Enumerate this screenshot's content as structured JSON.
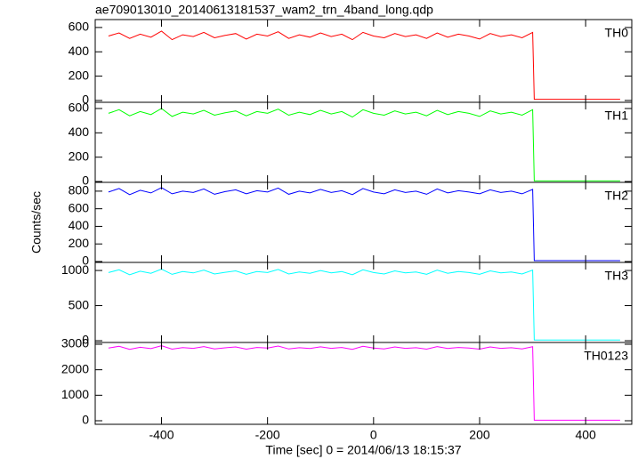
{
  "chart_data": [
    {
      "type": "line",
      "title": "ae709013010_20140613181537_wam2_trn_4band_long.qdp",
      "label": "TH0",
      "x": [
        -500,
        -480,
        -460,
        -440,
        -420,
        -400,
        -380,
        -360,
        -340,
        -320,
        -300,
        -280,
        -260,
        -240,
        -220,
        -200,
        -180,
        -160,
        -140,
        -120,
        -100,
        -80,
        -60,
        -40,
        -20,
        0,
        20,
        40,
        60,
        80,
        100,
        120,
        140,
        160,
        180,
        200,
        220,
        240,
        260,
        280,
        300,
        303,
        465
      ],
      "series": [
        {
          "color": "#ff0000",
          "values": [
            530,
            555,
            510,
            545,
            520,
            570,
            500,
            540,
            525,
            560,
            515,
            535,
            550,
            505,
            545,
            530,
            565,
            510,
            540,
            520,
            555,
            525,
            545,
            500,
            560,
            530,
            515,
            550,
            525,
            540,
            510,
            555,
            520,
            545,
            530,
            505,
            550,
            525,
            540,
            515,
            560,
            10,
            10
          ]
        }
      ],
      "xlim": [
        -525,
        487
      ],
      "xticks": [
        -400,
        -200,
        0,
        200,
        400
      ],
      "ylim": [
        -15,
        665
      ],
      "yticks": [
        0,
        200,
        400,
        600
      ]
    },
    {
      "type": "line",
      "label": "TH1",
      "x": [
        -500,
        -480,
        -460,
        -440,
        -420,
        -400,
        -380,
        -360,
        -340,
        -320,
        -300,
        -280,
        -260,
        -240,
        -220,
        -200,
        -180,
        -160,
        -140,
        -120,
        -100,
        -80,
        -60,
        -40,
        -20,
        0,
        20,
        40,
        60,
        80,
        100,
        120,
        140,
        160,
        180,
        200,
        220,
        240,
        260,
        280,
        300,
        303,
        465
      ],
      "series": [
        {
          "color": "#00ff00",
          "values": [
            560,
            590,
            540,
            575,
            550,
            600,
            535,
            570,
            555,
            585,
            545,
            565,
            580,
            540,
            575,
            560,
            595,
            545,
            570,
            550,
            585,
            555,
            575,
            530,
            590,
            560,
            545,
            580,
            555,
            570,
            540,
            585,
            550,
            575,
            560,
            535,
            580,
            555,
            570,
            545,
            590,
            5,
            5
          ]
        }
      ],
      "xlim": [
        -525,
        487
      ],
      "xticks": [
        -400,
        -200,
        0,
        200,
        400
      ],
      "ylim": [
        -7,
        651
      ],
      "yticks": [
        0,
        200,
        400,
        600
      ]
    },
    {
      "type": "line",
      "label": "TH2",
      "ylabel": "Counts/sec",
      "x": [
        -500,
        -480,
        -460,
        -440,
        -420,
        -400,
        -380,
        -360,
        -340,
        -320,
        -300,
        -280,
        -260,
        -240,
        -220,
        -200,
        -180,
        -160,
        -140,
        -120,
        -100,
        -80,
        -60,
        -40,
        -20,
        0,
        20,
        40,
        60,
        80,
        100,
        120,
        140,
        160,
        180,
        200,
        220,
        240,
        260,
        280,
        300,
        303,
        465
      ],
      "series": [
        {
          "color": "#0000ff",
          "values": [
            790,
            830,
            760,
            810,
            780,
            840,
            770,
            800,
            785,
            825,
            765,
            795,
            815,
            770,
            805,
            790,
            835,
            765,
            800,
            780,
            820,
            785,
            805,
            760,
            830,
            790,
            770,
            815,
            785,
            800,
            765,
            825,
            780,
            805,
            790,
            770,
            815,
            785,
            800,
            770,
            820,
            10,
            10
          ]
        }
      ],
      "xlim": [
        -525,
        487
      ],
      "xticks": [
        -400,
        -200,
        0,
        200,
        400
      ],
      "ylim": [
        -10,
        900
      ],
      "yticks": [
        0,
        200,
        400,
        600,
        800
      ]
    },
    {
      "type": "line",
      "label": "TH3",
      "x": [
        -500,
        -480,
        -460,
        -440,
        -420,
        -400,
        -380,
        -360,
        -340,
        -320,
        -300,
        -280,
        -260,
        -240,
        -220,
        -200,
        -180,
        -160,
        -140,
        -120,
        -100,
        -80,
        -60,
        -40,
        -20,
        0,
        20,
        40,
        60,
        80,
        100,
        120,
        140,
        160,
        180,
        200,
        220,
        240,
        260,
        280,
        300,
        303,
        465
      ],
      "series": [
        {
          "color": "#00ffff",
          "values": [
            970,
            1010,
            940,
            990,
            960,
            1020,
            945,
            985,
            965,
            1005,
            950,
            975,
            995,
            945,
            985,
            970,
            1015,
            950,
            980,
            960,
            1000,
            965,
            985,
            940,
            1010,
            970,
            950,
            995,
            965,
            980,
            945,
            1005,
            960,
            985,
            970,
            945,
            995,
            965,
            980,
            950,
            1005,
            10,
            10
          ]
        }
      ],
      "xlim": [
        -525,
        487
      ],
      "xticks": [
        -400,
        -200,
        0,
        200,
        400
      ],
      "ylim": [
        -25,
        1115
      ],
      "yticks": [
        0,
        500,
        1000
      ]
    },
    {
      "type": "line",
      "label": "TH0123",
      "xlabel": "Time [sec] 0 = 2014/06/13 18:15:37",
      "x": [
        -500,
        -480,
        -460,
        -440,
        -420,
        -400,
        -380,
        -360,
        -340,
        -320,
        -300,
        -280,
        -260,
        -240,
        -220,
        -200,
        -180,
        -160,
        -140,
        -120,
        -100,
        -80,
        -60,
        -40,
        -20,
        0,
        20,
        40,
        60,
        80,
        100,
        120,
        140,
        160,
        180,
        200,
        220,
        240,
        260,
        280,
        300,
        303,
        465
      ],
      "series": [
        {
          "color": "#ff00ff",
          "values": [
            2850,
            2920,
            2800,
            2880,
            2830,
            2940,
            2810,
            2870,
            2840,
            2910,
            2815,
            2860,
            2895,
            2810,
            2875,
            2850,
            2930,
            2815,
            2865,
            2835,
            2900,
            2840,
            2875,
            2800,
            2920,
            2850,
            2815,
            2895,
            2840,
            2865,
            2810,
            2910,
            2835,
            2875,
            2850,
            2810,
            2895,
            2840,
            2865,
            2815,
            2905,
            20,
            20
          ]
        }
      ],
      "xlim": [
        -525,
        487
      ],
      "xticks": [
        -400,
        -200,
        0,
        200,
        400
      ],
      "ylim": [
        -140,
        3070
      ],
      "yticks": [
        0,
        1000,
        2000,
        3000
      ]
    }
  ]
}
